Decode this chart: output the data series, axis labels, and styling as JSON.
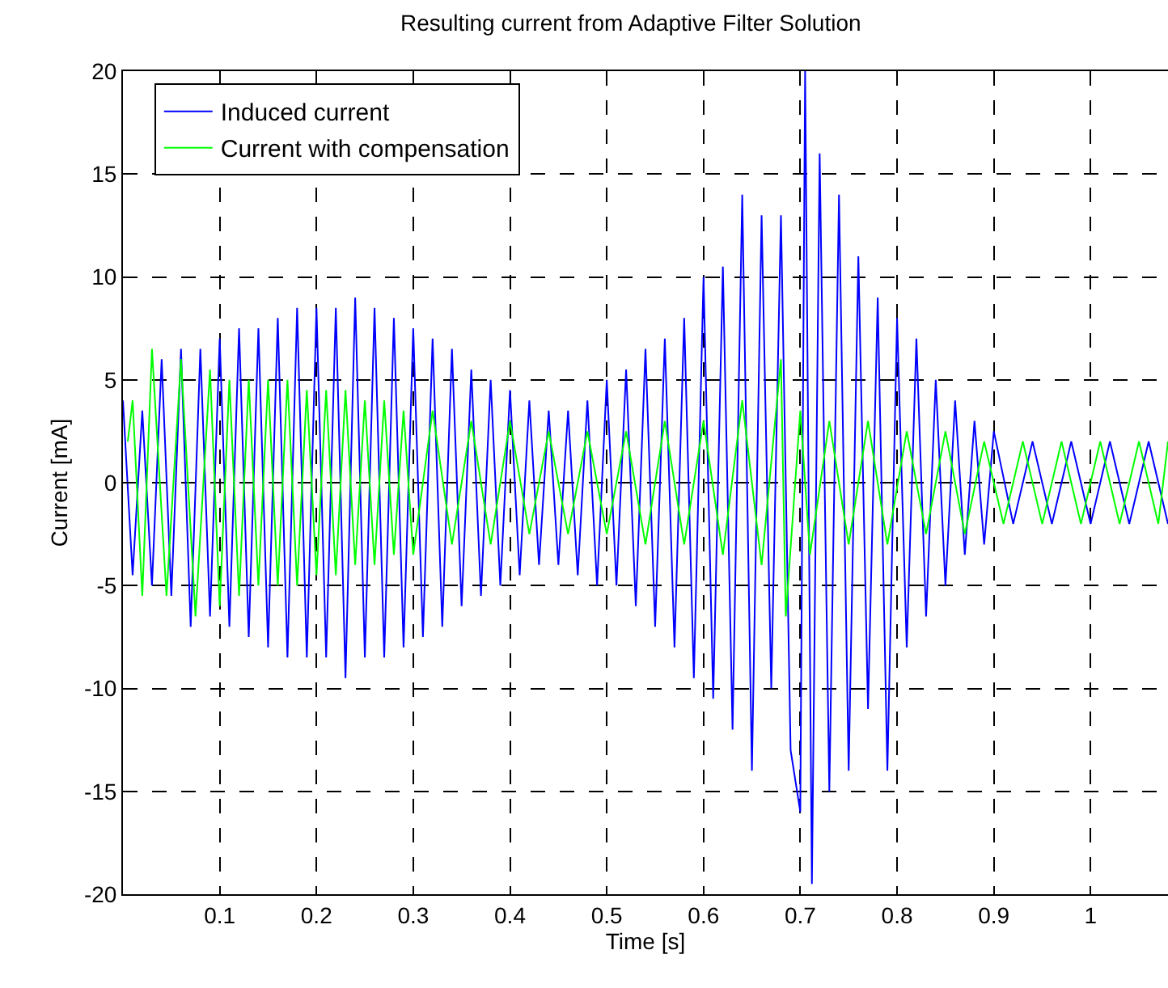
{
  "chart_data": {
    "type": "line",
    "title": "Resulting current from Adaptive Filter Solution",
    "xlabel": "Time [s]",
    "ylabel": "Current [mA]",
    "xlim": [
      0,
      1.08
    ],
    "xticks": [
      0.1,
      0.2,
      0.3,
      0.4,
      0.5,
      0.6,
      0.7,
      0.8,
      0.9,
      1
    ],
    "ylim": [
      -20,
      20
    ],
    "yticks": [
      -20,
      -15,
      -10,
      -5,
      0,
      5,
      10,
      15,
      20
    ],
    "grid": true,
    "legend": "top left",
    "line_style": "solid",
    "series": [
      {
        "name": "Induced current",
        "color": "#0000ff",
        "x": [
          0.0,
          0.01,
          0.02,
          0.03,
          0.04,
          0.05,
          0.06,
          0.07,
          0.08,
          0.09,
          0.1,
          0.11,
          0.12,
          0.13,
          0.14,
          0.15,
          0.16,
          0.17,
          0.18,
          0.19,
          0.2,
          0.21,
          0.22,
          0.23,
          0.24,
          0.25,
          0.26,
          0.27,
          0.28,
          0.29,
          0.3,
          0.31,
          0.32,
          0.33,
          0.34,
          0.35,
          0.36,
          0.37,
          0.38,
          0.39,
          0.4,
          0.41,
          0.42,
          0.43,
          0.44,
          0.45,
          0.46,
          0.47,
          0.48,
          0.49,
          0.5,
          0.51,
          0.52,
          0.53,
          0.54,
          0.55,
          0.56,
          0.57,
          0.58,
          0.59,
          0.6,
          0.61,
          0.62,
          0.63,
          0.64,
          0.65,
          0.66,
          0.67,
          0.68,
          0.69,
          0.7,
          0.705,
          0.712,
          0.72,
          0.73,
          0.74,
          0.75,
          0.76,
          0.77,
          0.78,
          0.79,
          0.8,
          0.81,
          0.82,
          0.83,
          0.84,
          0.85,
          0.86,
          0.87,
          0.88,
          0.89,
          0.9,
          0.92,
          0.94,
          0.96,
          0.98,
          1.0,
          1.02,
          1.04,
          1.06,
          1.08
        ],
        "values": [
          4,
          -4.5,
          3.5,
          -5,
          6,
          -5.5,
          6.5,
          -7,
          6.5,
          -6.5,
          7,
          -7,
          7.5,
          -7.5,
          7.5,
          -8,
          8,
          -8.5,
          8.5,
          -8.5,
          8.5,
          -8.5,
          8.5,
          -9.5,
          9,
          -8.5,
          8.5,
          -8.5,
          8,
          -8,
          7.5,
          -7.5,
          7,
          -7,
          6.5,
          -6,
          5.5,
          -5.5,
          5,
          -5,
          4.5,
          -4.5,
          4,
          -4,
          3.5,
          -4,
          3.5,
          -4.5,
          4,
          -5,
          5,
          -5,
          5.5,
          -6,
          6.5,
          -7,
          7,
          -8,
          8,
          -9.5,
          10,
          -10.5,
          10.5,
          -12,
          14,
          -14,
          13,
          -10,
          13,
          -13,
          -16,
          20,
          -19.5,
          16,
          -15,
          14,
          -14,
          11,
          -11,
          9,
          -14,
          8,
          -8,
          7,
          -6.5,
          5,
          -5,
          4,
          -3.5,
          3,
          -3,
          2.5,
          -2,
          2,
          -2,
          2,
          -2,
          2,
          -2,
          2,
          -2
        ]
      },
      {
        "name": "Current with compensation",
        "color": "#00ff00",
        "x": [
          0.005,
          0.01,
          0.02,
          0.03,
          0.045,
          0.06,
          0.075,
          0.09,
          0.1,
          0.11,
          0.12,
          0.13,
          0.14,
          0.15,
          0.16,
          0.17,
          0.18,
          0.19,
          0.2,
          0.21,
          0.22,
          0.23,
          0.24,
          0.25,
          0.26,
          0.27,
          0.28,
          0.29,
          0.3,
          0.32,
          0.34,
          0.36,
          0.38,
          0.4,
          0.42,
          0.44,
          0.46,
          0.48,
          0.5,
          0.52,
          0.54,
          0.56,
          0.58,
          0.6,
          0.62,
          0.64,
          0.66,
          0.68,
          0.685,
          0.7,
          0.71,
          0.73,
          0.75,
          0.77,
          0.79,
          0.81,
          0.83,
          0.85,
          0.87,
          0.89,
          0.91,
          0.93,
          0.95,
          0.97,
          0.99,
          1.01,
          1.03,
          1.05,
          1.07,
          1.08
        ],
        "values": [
          2,
          4,
          -5.5,
          6.5,
          -5.5,
          6,
          -6.5,
          5.5,
          -6,
          5,
          -5.5,
          5,
          -5,
          5,
          -5,
          5,
          -5,
          4.5,
          -4.5,
          4.5,
          -4.5,
          4.5,
          -4,
          4,
          -4,
          4,
          -3.5,
          3.5,
          -3.5,
          3.5,
          -3,
          3,
          -3,
          3,
          -2.5,
          2.5,
          -2.5,
          2.5,
          -2.5,
          2.5,
          -3,
          3,
          -3,
          3,
          -3.5,
          4,
          -4,
          6,
          -6.5,
          3.5,
          -3.5,
          3,
          -3,
          3,
          -3,
          2.5,
          -2.5,
          2.5,
          -2.5,
          2,
          -2,
          2,
          -2,
          2,
          -2,
          2,
          -2,
          2,
          -2,
          2
        ]
      }
    ]
  }
}
